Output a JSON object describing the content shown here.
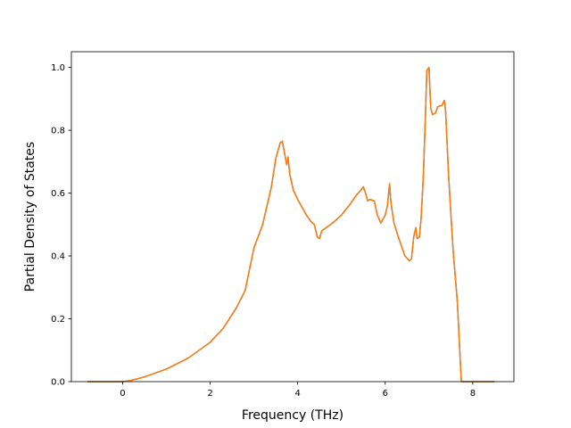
{
  "chart_data": {
    "type": "line",
    "title": "",
    "xlabel": "Frequency (THz)",
    "ylabel": "Partial Density of States",
    "xlim": [
      -1.17,
      8.94
    ],
    "ylim": [
      0.0,
      1.05
    ],
    "xticks": [
      0,
      2,
      4,
      6,
      8
    ],
    "xtick_labels": [
      "0",
      "2",
      "4",
      "6",
      "8"
    ],
    "yticks": [
      0.0,
      0.2,
      0.4,
      0.6,
      0.8,
      1.0
    ],
    "ytick_labels": [
      "0.0",
      "0.2",
      "0.4",
      "0.6",
      "0.8",
      "1.0"
    ],
    "grid": false,
    "legend": "none",
    "series": [
      {
        "color": "#1f77b4",
        "x": [
          -0.8,
          0.0,
          0.2,
          0.5,
          1.0,
          1.5,
          2.0,
          2.3,
          2.6,
          2.8,
          3.0,
          3.2,
          3.4,
          3.5,
          3.6,
          3.65,
          3.75,
          3.78,
          3.82,
          3.9,
          4.0,
          4.2,
          4.3,
          4.38,
          4.45,
          4.5,
          4.55,
          4.6,
          4.8,
          5.0,
          5.2,
          5.35,
          5.45,
          5.5,
          5.55,
          5.6,
          5.65,
          5.75,
          5.82,
          5.9,
          6.0,
          6.05,
          6.1,
          6.13,
          6.2,
          6.3,
          6.45,
          6.55,
          6.6,
          6.65,
          6.7,
          6.73,
          6.78,
          6.82,
          6.87,
          6.92,
          6.95,
          7.0,
          7.04,
          7.08,
          7.15,
          7.2,
          7.3,
          7.35,
          7.38,
          7.45,
          7.55,
          7.65,
          7.72,
          7.74,
          7.78,
          8.5
        ],
        "y": [
          0.0,
          0.0,
          0.004,
          0.015,
          0.04,
          0.075,
          0.125,
          0.17,
          0.235,
          0.29,
          0.425,
          0.5,
          0.62,
          0.71,
          0.76,
          0.765,
          0.69,
          0.715,
          0.66,
          0.61,
          0.58,
          0.53,
          0.51,
          0.5,
          0.46,
          0.455,
          0.48,
          0.485,
          0.505,
          0.53,
          0.565,
          0.595,
          0.61,
          0.62,
          0.6,
          0.575,
          0.58,
          0.575,
          0.53,
          0.505,
          0.53,
          0.56,
          0.63,
          0.57,
          0.505,
          0.46,
          0.4,
          0.385,
          0.39,
          0.46,
          0.49,
          0.455,
          0.46,
          0.52,
          0.65,
          0.85,
          0.99,
          1.0,
          0.87,
          0.85,
          0.855,
          0.875,
          0.88,
          0.895,
          0.86,
          0.65,
          0.42,
          0.25,
          0.05,
          0.0,
          0.0,
          0.0
        ]
      },
      {
        "color": "#ff7f0e",
        "x": [
          -0.8,
          0.0,
          0.2,
          0.5,
          1.0,
          1.5,
          2.0,
          2.3,
          2.6,
          2.8,
          3.0,
          3.2,
          3.4,
          3.5,
          3.6,
          3.65,
          3.75,
          3.78,
          3.82,
          3.9,
          4.0,
          4.2,
          4.3,
          4.38,
          4.45,
          4.5,
          4.55,
          4.6,
          4.8,
          5.0,
          5.2,
          5.35,
          5.45,
          5.5,
          5.55,
          5.6,
          5.65,
          5.75,
          5.82,
          5.9,
          6.0,
          6.05,
          6.1,
          6.13,
          6.2,
          6.3,
          6.45,
          6.55,
          6.6,
          6.65,
          6.7,
          6.73,
          6.78,
          6.82,
          6.87,
          6.92,
          6.95,
          7.0,
          7.04,
          7.08,
          7.15,
          7.2,
          7.3,
          7.35,
          7.38,
          7.45,
          7.55,
          7.65,
          7.72,
          7.74,
          7.78,
          8.5
        ],
        "y": [
          0.0,
          0.0,
          0.004,
          0.015,
          0.04,
          0.075,
          0.125,
          0.17,
          0.235,
          0.29,
          0.425,
          0.5,
          0.62,
          0.71,
          0.76,
          0.765,
          0.69,
          0.715,
          0.66,
          0.61,
          0.58,
          0.53,
          0.51,
          0.5,
          0.46,
          0.455,
          0.48,
          0.485,
          0.505,
          0.53,
          0.565,
          0.595,
          0.61,
          0.62,
          0.6,
          0.575,
          0.58,
          0.575,
          0.53,
          0.505,
          0.53,
          0.56,
          0.63,
          0.57,
          0.505,
          0.46,
          0.4,
          0.385,
          0.39,
          0.46,
          0.49,
          0.455,
          0.46,
          0.52,
          0.65,
          0.85,
          0.99,
          1.0,
          0.87,
          0.85,
          0.855,
          0.875,
          0.88,
          0.895,
          0.86,
          0.65,
          0.42,
          0.25,
          0.05,
          0.0,
          0.0,
          0.0
        ]
      }
    ]
  }
}
